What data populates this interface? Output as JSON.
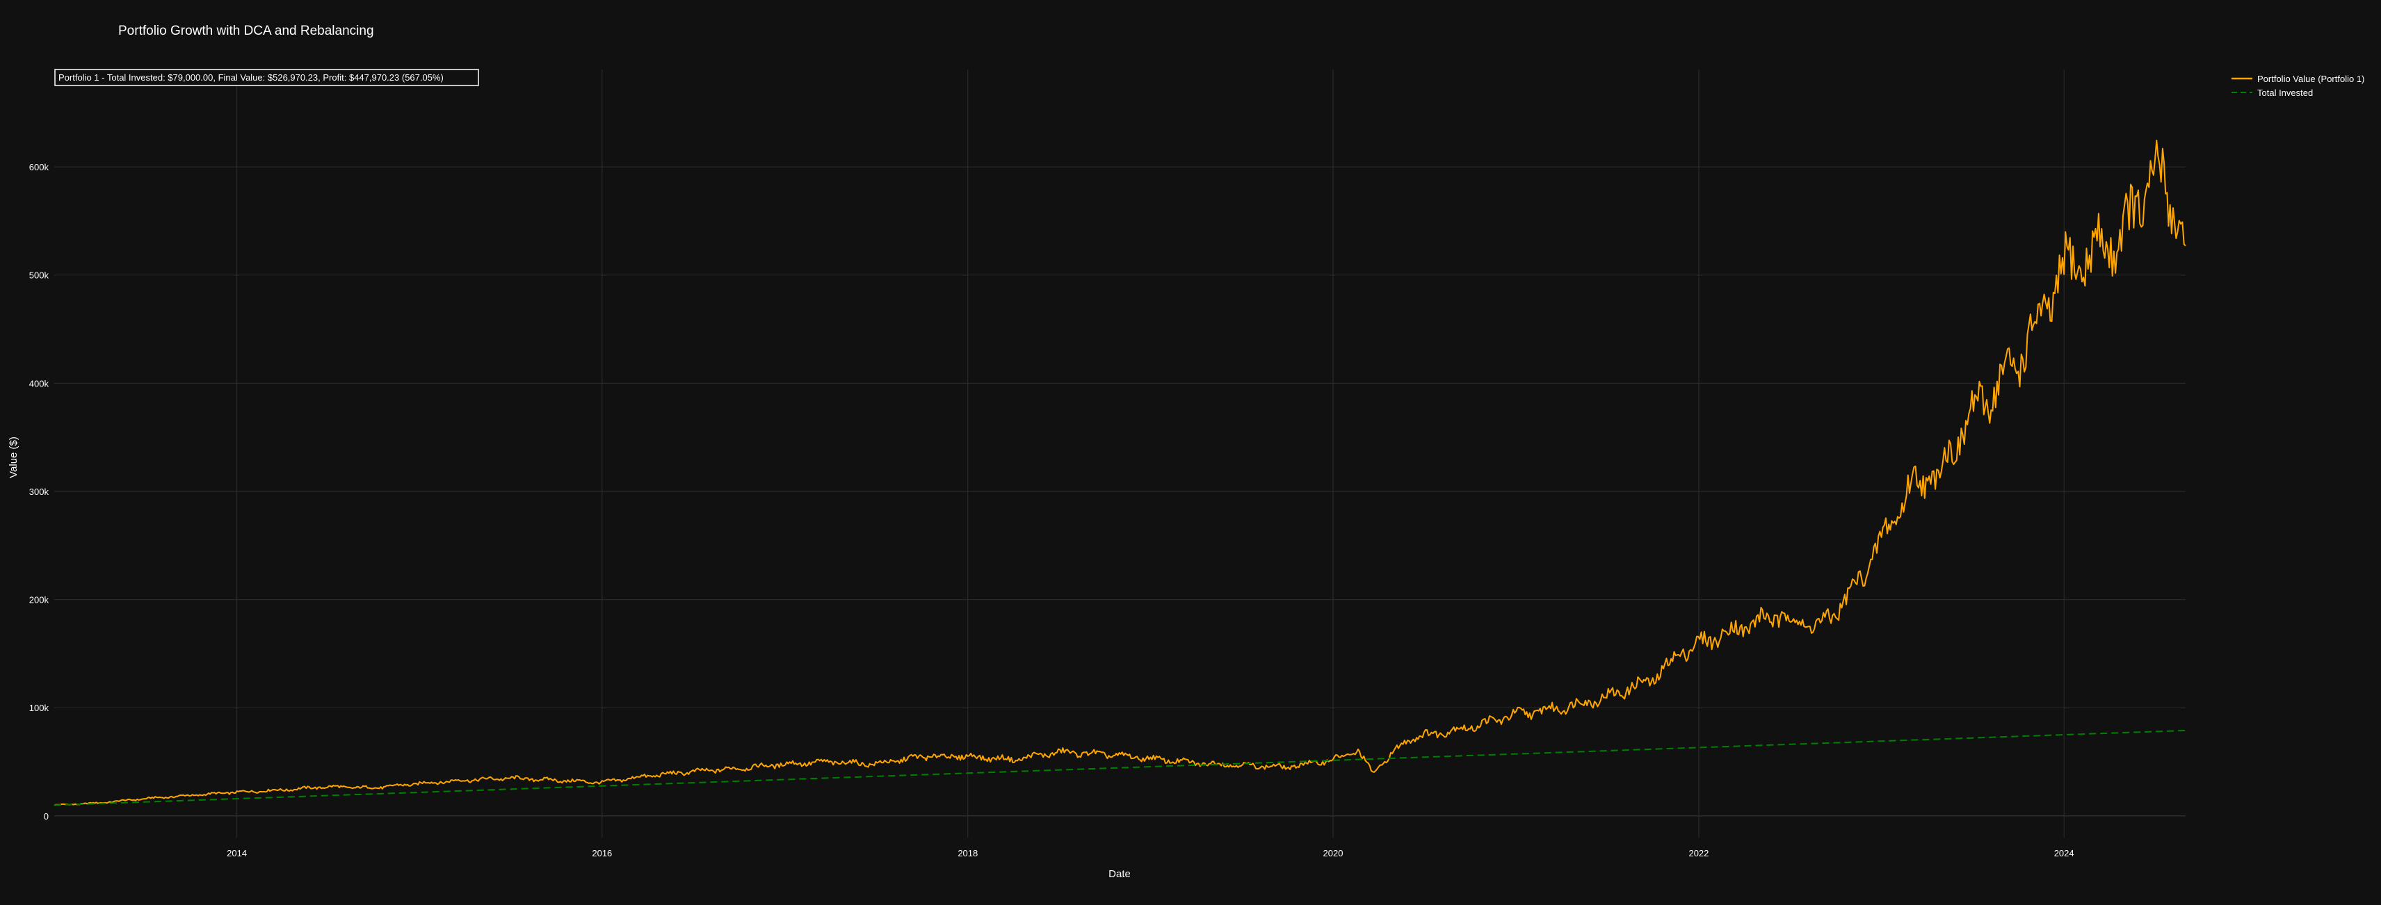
{
  "colors": {
    "background": "#111111",
    "grid": "#2e2e2e",
    "portfolio_line": "#FFA500",
    "invested_line": "#008000",
    "text": "#ffffff"
  },
  "chart_data": {
    "type": "line",
    "title": "Portfolio Growth with DCA and Rebalancing",
    "xlabel": "Date",
    "ylabel": "Value ($)",
    "x_ticks": [
      "2014",
      "2016",
      "2018",
      "2020",
      "2022",
      "2024"
    ],
    "y_ticks": [
      "0",
      "100k",
      "200k",
      "300k",
      "400k",
      "500k",
      "600k"
    ],
    "xlim": [
      "2013-01-01",
      "2024-08-31"
    ],
    "ylim": [
      -20000,
      690000
    ],
    "grid": true,
    "legend_placement": "top-right, outside plot",
    "annotation": "Portfolio 1 - Total Invested: $79,000.00, Final Value: $526,970.23, Profit: $447,970.23 (567.05%)",
    "series": [
      {
        "name": "Portfolio Value (Portfolio 1)",
        "style": "solid",
        "points": [
          [
            "2013-01-01",
            10000
          ],
          [
            "2013-04-01",
            12000
          ],
          [
            "2013-07-01",
            16000
          ],
          [
            "2013-10-01",
            19000
          ],
          [
            "2014-01-01",
            22000
          ],
          [
            "2014-04-01",
            24000
          ],
          [
            "2014-07-01",
            27000
          ],
          [
            "2014-10-01",
            26000
          ],
          [
            "2015-01-01",
            30000
          ],
          [
            "2015-04-01",
            33000
          ],
          [
            "2015-07-01",
            35000
          ],
          [
            "2015-10-01",
            33000
          ],
          [
            "2016-01-01",
            31000
          ],
          [
            "2016-04-01",
            37000
          ],
          [
            "2016-07-01",
            41000
          ],
          [
            "2016-10-01",
            44000
          ],
          [
            "2017-01-01",
            48000
          ],
          [
            "2017-04-01",
            50000
          ],
          [
            "2017-07-01",
            48000
          ],
          [
            "2017-10-01",
            55000
          ],
          [
            "2018-01-01",
            55000
          ],
          [
            "2018-04-01",
            52000
          ],
          [
            "2018-07-01",
            59000
          ],
          [
            "2018-10-01",
            57000
          ],
          [
            "2019-01-01",
            53000
          ],
          [
            "2019-04-01",
            49000
          ],
          [
            "2019-07-01",
            47000
          ],
          [
            "2019-10-01",
            45000
          ],
          [
            "2020-01-01",
            52000
          ],
          [
            "2020-02-20",
            60000
          ],
          [
            "2020-03-20",
            40000
          ],
          [
            "2020-06-01",
            72000
          ],
          [
            "2020-10-01",
            82000
          ],
          [
            "2021-01-01",
            94000
          ],
          [
            "2021-04-01",
            100000
          ],
          [
            "2021-07-01",
            110000
          ],
          [
            "2021-10-01",
            126000
          ],
          [
            "2021-12-01",
            153000
          ],
          [
            "2022-03-01",
            170000
          ],
          [
            "2022-06-01",
            185000
          ],
          [
            "2022-09-01",
            175000
          ],
          [
            "2022-11-01",
            205000
          ],
          [
            "2023-01-01",
            254000
          ],
          [
            "2023-03-01",
            305000
          ],
          [
            "2023-05-01",
            320000
          ],
          [
            "2023-07-01",
            372000
          ],
          [
            "2023-09-01",
            403000
          ],
          [
            "2023-11-01",
            445000
          ],
          [
            "2024-01-01",
            505000
          ],
          [
            "2024-03-01",
            520000
          ],
          [
            "2024-05-01",
            540000
          ],
          [
            "2024-07-01",
            595000
          ],
          [
            "2024-08-15",
            560000
          ],
          [
            "2024-08-31",
            526970
          ]
        ]
      },
      {
        "name": "Total Invested",
        "style": "dashed",
        "points": [
          [
            "2013-01-01",
            10000
          ],
          [
            "2024-08-31",
            79000
          ]
        ]
      }
    ]
  }
}
